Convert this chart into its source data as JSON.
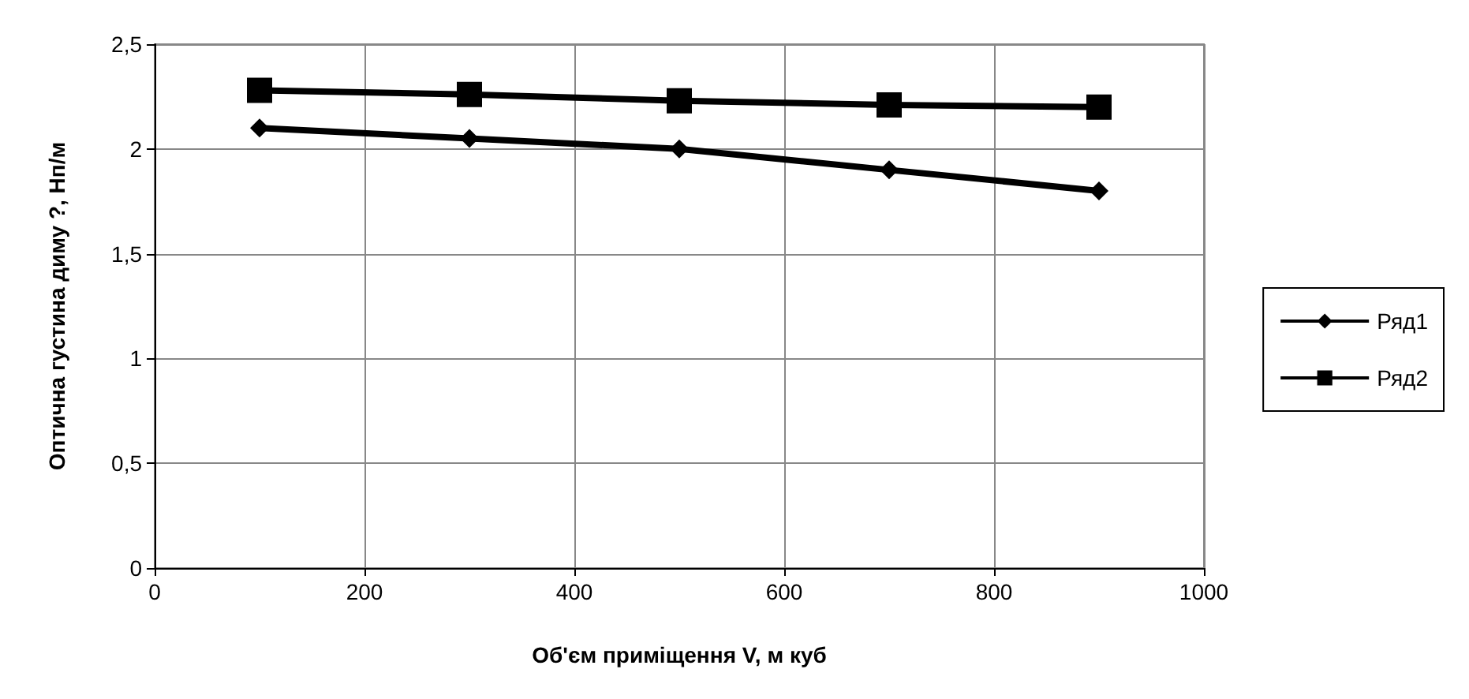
{
  "chart_data": {
    "type": "line",
    "xlabel": "Об'єм приміщення V, м куб",
    "ylabel": "Оптична густина диму ?, Нп/м",
    "x": [
      100,
      300,
      500,
      700,
      900
    ],
    "series": [
      {
        "name": "Ряд1",
        "color": "#000000",
        "marker": "diamond",
        "values": [
          2.1,
          2.05,
          2.0,
          1.9,
          1.8
        ]
      },
      {
        "name": "Ряд2",
        "color": "#000000",
        "marker": "square",
        "values": [
          2.28,
          2.26,
          2.23,
          2.21,
          2.2
        ]
      }
    ],
    "xlim": [
      0,
      1000
    ],
    "xticks": [
      0,
      200,
      400,
      600,
      800,
      1000
    ],
    "ylim": [
      0,
      2.5
    ],
    "yticks": [
      0,
      {
        "value": 0.5,
        "label": "0,5"
      },
      1,
      {
        "value": 1.5,
        "label": "1,5"
      },
      2,
      {
        "value": 2.5,
        "label": "2,5"
      }
    ],
    "grid": true,
    "legend": "right",
    "line_style": "solid"
  }
}
